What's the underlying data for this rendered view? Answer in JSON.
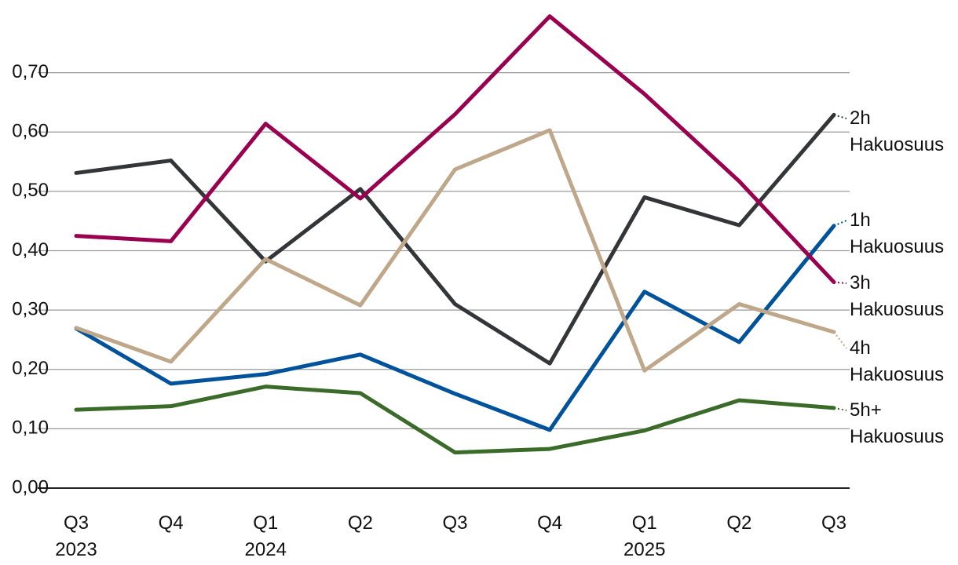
{
  "chart_data": {
    "type": "line",
    "categories": [
      "Q3 2023",
      "Q4",
      "Q1 2024",
      "Q2",
      "Q3",
      "Q4",
      "Q1 2025",
      "Q2",
      "Q3"
    ],
    "series": [
      {
        "name": "1h Hakuosuus",
        "color": "#00529b",
        "values": [
          0.269,
          0.176,
          0.192,
          0.225,
          0.159,
          0.098,
          0.331,
          0.246,
          0.442
        ]
      },
      {
        "name": "2h Hakuosuus",
        "color": "#333539",
        "values": [
          0.531,
          0.552,
          0.382,
          0.504,
          0.31,
          0.21,
          0.49,
          0.443,
          0.629
        ]
      },
      {
        "name": "3h Hakuosuus",
        "color": "#990050",
        "values": [
          0.425,
          0.416,
          0.614,
          0.488,
          0.63,
          0.795,
          0.664,
          0.517,
          0.347
        ]
      },
      {
        "name": "4h Hakuosuus",
        "color": "#bfa88a",
        "values": [
          0.27,
          0.213,
          0.386,
          0.308,
          0.537,
          0.603,
          0.198,
          0.31,
          0.263
        ]
      },
      {
        "name": "5h+ Hakuosuus",
        "color": "#3b6b29",
        "values": [
          0.132,
          0.138,
          0.171,
          0.16,
          0.06,
          0.066,
          0.097,
          0.148,
          0.135
        ]
      }
    ],
    "ylim": [
      0,
      0.8
    ],
    "yticks": [
      {
        "value": 0,
        "label": "0,00"
      },
      {
        "value": 0.1,
        "label": "0,10"
      },
      {
        "value": 0.2,
        "label": "0,20"
      },
      {
        "value": 0.3,
        "label": "0,30"
      },
      {
        "value": 0.4,
        "label": "0,40"
      },
      {
        "value": 0.5,
        "label": "0,50"
      },
      {
        "value": 0.6,
        "label": "0,60"
      },
      {
        "value": 0.7,
        "label": "0,70"
      }
    ],
    "grid": true
  }
}
